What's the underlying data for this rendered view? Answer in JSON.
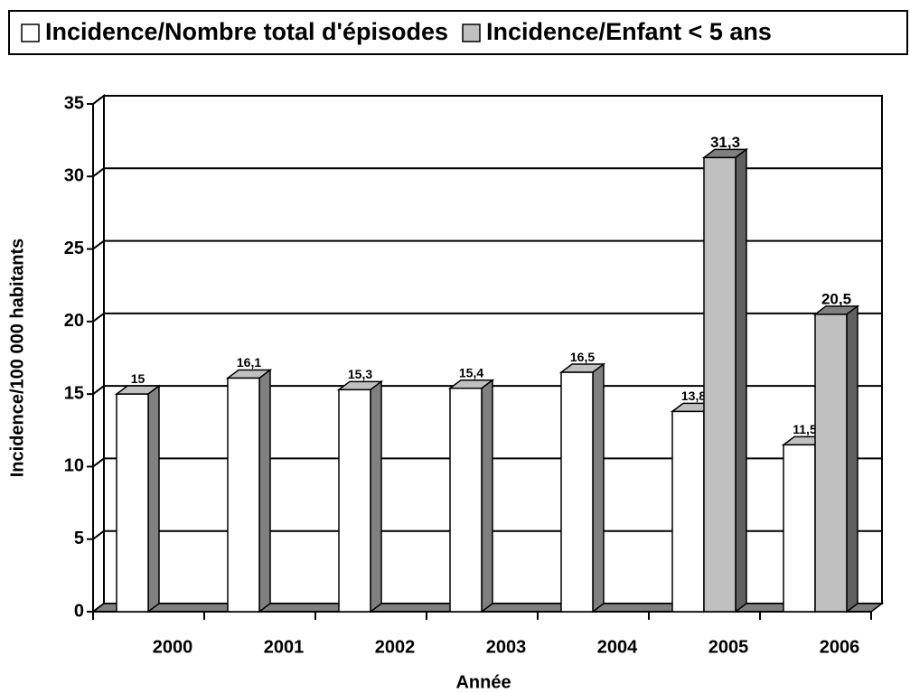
{
  "chart_data": {
    "type": "bar3d",
    "x_label": "Année",
    "y_label": "Incidence/100 000 habitants",
    "categories": [
      "2000",
      "2001",
      "2002",
      "2003",
      "2004",
      "2005",
      "2006"
    ],
    "series": [
      {
        "name": "Incidence/Nombre total d'épisodes",
        "color": "#ffffff",
        "values": [
          15,
          16.1,
          15.3,
          15.4,
          16.5,
          13.8,
          11.5
        ],
        "value_labels": [
          "15",
          "16,1",
          "15,3",
          "15,4",
          "16,5",
          "13,8",
          "11,5"
        ]
      },
      {
        "name": "Incidence/Enfant < 5 ans",
        "color": "#c0c0c0",
        "values": [
          null,
          null,
          null,
          null,
          null,
          31.3,
          20.5
        ],
        "value_labels": [
          null,
          null,
          null,
          null,
          null,
          "31,3",
          "20,5"
        ]
      }
    ],
    "ylim": [
      0,
      35
    ],
    "yticks": [
      0,
      5,
      10,
      15,
      20,
      25,
      30,
      35
    ],
    "grid": true
  }
}
